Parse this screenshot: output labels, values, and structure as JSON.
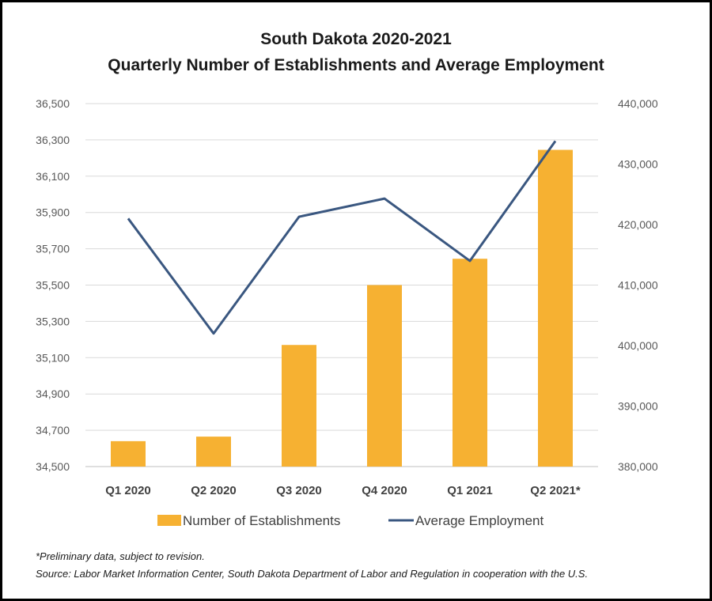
{
  "chart_data": {
    "type": "bar",
    "title": "South Dakota 2020-2021",
    "subtitle": "Quarterly Number of Establishments and Average Employment",
    "categories": [
      "Q1 2020",
      "Q2 2020",
      "Q3 2020",
      "Q4 2020",
      "Q1 2021",
      "Q2 2021*"
    ],
    "series": [
      {
        "name": "Number of Establishments",
        "type": "bar",
        "axis": "left",
        "color": "#F6B132",
        "values": [
          34640,
          34665,
          35170,
          35500,
          35645,
          36245
        ]
      },
      {
        "name": "Average Employment",
        "type": "line",
        "axis": "right",
        "color": "#3A5780",
        "values": [
          421000,
          402000,
          421300,
          424300,
          414000,
          433800
        ]
      }
    ],
    "y_left": {
      "lim": [
        34500,
        36500
      ],
      "ticks": [
        "34,500",
        "34,700",
        "34,900",
        "35,100",
        "35,300",
        "35,500",
        "35,700",
        "35,900",
        "36,100",
        "36,300",
        "36,500"
      ]
    },
    "y_right": {
      "lim": [
        380000,
        440000
      ],
      "ticks": [
        "380,000",
        "390,000",
        "400,000",
        "410,000",
        "420,000",
        "430,000",
        "440,000"
      ]
    },
    "grid": true,
    "legend": "bottom"
  },
  "footnotes": {
    "preliminary": "*Preliminary data, subject to revision.",
    "source": "Source: Labor Market Information Center, South Dakota Department of Labor and Regulation in cooperation with the U.S."
  }
}
